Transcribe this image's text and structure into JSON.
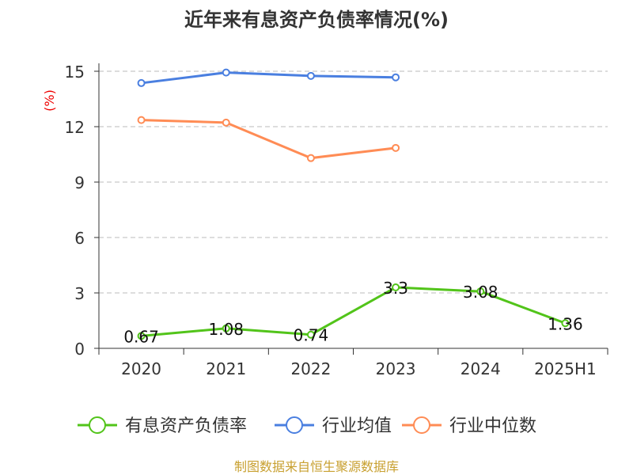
{
  "chart_data": {
    "type": "line",
    "title": "近年来有息资产负债率情况(%)",
    "ylabel": "(%)",
    "xlabel": "",
    "ylim": [
      0,
      15
    ],
    "yticks": [
      0,
      3,
      6,
      9,
      12,
      15
    ],
    "grid": true,
    "categories": [
      "2020",
      "2021",
      "2022",
      "2023",
      "2024",
      "2025H1"
    ],
    "series": [
      {
        "name": "有息资产负债率",
        "color": "#52c41a",
        "values": [
          0.67,
          1.08,
          0.74,
          3.3,
          3.08,
          1.36
        ],
        "labels": [
          "0.67",
          "1.08",
          "0.74",
          "3.3",
          "3.08",
          "1.36"
        ]
      },
      {
        "name": "行业均值",
        "color": "#4a7fe0",
        "values": [
          14.36,
          14.93,
          14.75,
          14.67,
          null,
          null
        ]
      },
      {
        "name": "行业中位数",
        "color": "#ff8c55",
        "values": [
          12.36,
          12.22,
          10.3,
          10.85,
          null,
          null
        ]
      }
    ],
    "legend_position": "bottom",
    "source": "制图数据来自恒生聚源数据库"
  }
}
